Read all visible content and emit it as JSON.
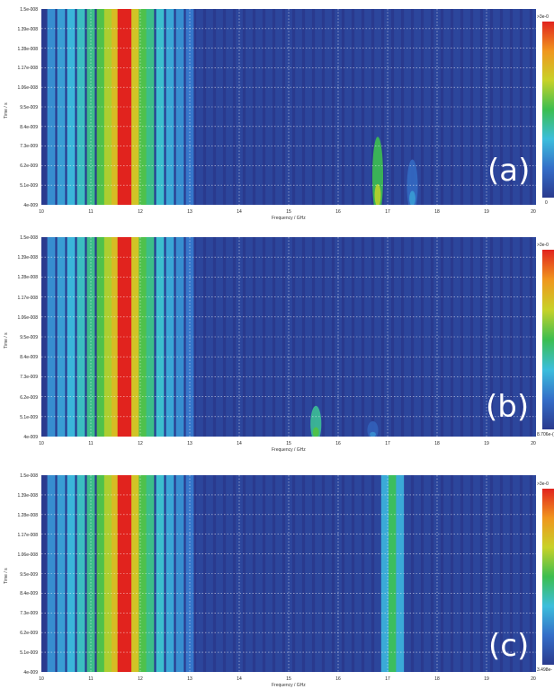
{
  "chart_data": [
    {
      "type": "heatmap",
      "panel_label": "(a)",
      "xlabel": "Frequency / GHz",
      "ylabel": "Time / s",
      "xlim": [
        10,
        20
      ],
      "ylim": [
        4e-09,
        1.5e-08
      ],
      "x_ticks": [
        "10",
        "11",
        "12",
        "13",
        "14",
        "15",
        "16",
        "17",
        "18",
        "19",
        "20"
      ],
      "y_ticks": [
        "4e-009",
        "5.1e-009",
        "6.2e-009",
        "7.3e-009",
        "8.4e-009",
        "9.5e-009",
        "1.06e-008",
        "1.17e-008",
        "1.28e-008",
        "1.39e-008",
        "1.5e-008"
      ],
      "colorbar_max": ">3e-0",
      "colorbar_min": "0",
      "bands": [
        {
          "f": 10.2,
          "level": 0.28
        },
        {
          "f": 10.4,
          "level": 0.32
        },
        {
          "f": 10.6,
          "level": 0.38
        },
        {
          "f": 10.8,
          "level": 0.44
        },
        {
          "f": 11.0,
          "level": 0.52
        },
        {
          "f": 11.2,
          "level": 0.62
        },
        {
          "f": 11.35,
          "level": 0.72
        },
        {
          "f": 11.5,
          "level": 0.8
        },
        {
          "f": 11.7,
          "level": 1.0
        },
        {
          "f": 11.9,
          "level": 0.78
        },
        {
          "f": 12.05,
          "level": 0.62
        },
        {
          "f": 12.2,
          "level": 0.52
        },
        {
          "f": 12.4,
          "level": 0.42
        },
        {
          "f": 12.6,
          "level": 0.34
        },
        {
          "f": 12.8,
          "level": 0.28
        },
        {
          "f": 13.0,
          "level": 0.22
        }
      ],
      "features": [
        {
          "f": 16.8,
          "t_low": 4e-09,
          "t_high": 8.5e-09,
          "level": 0.6
        },
        {
          "f": 17.5,
          "t_low": 4e-09,
          "t_high": 7e-09,
          "level": 0.18
        }
      ]
    },
    {
      "type": "heatmap",
      "panel_label": "(b)",
      "xlabel": "Frequency / GHz",
      "ylabel": "Time / s",
      "xlim": [
        10,
        20
      ],
      "ylim": [
        4e-09,
        1.5e-08
      ],
      "x_ticks": [
        "10",
        "11",
        "12",
        "13",
        "14",
        "15",
        "16",
        "17",
        "18",
        "19",
        "20"
      ],
      "y_ticks": [
        "4e-009",
        "5.1e-009",
        "6.2e-009",
        "7.3e-009",
        "8.4e-009",
        "9.5e-009",
        "1.06e-008",
        "1.17e-008",
        "1.28e-008",
        "1.39e-008",
        "1.5e-008"
      ],
      "colorbar_max": ">3e-0",
      "colorbar_min": "8.706e-(",
      "bands": [
        {
          "f": 10.2,
          "level": 0.28
        },
        {
          "f": 10.4,
          "level": 0.32
        },
        {
          "f": 10.6,
          "level": 0.38
        },
        {
          "f": 10.8,
          "level": 0.44
        },
        {
          "f": 11.0,
          "level": 0.52
        },
        {
          "f": 11.2,
          "level": 0.62
        },
        {
          "f": 11.35,
          "level": 0.72
        },
        {
          "f": 11.5,
          "level": 0.8
        },
        {
          "f": 11.7,
          "level": 1.0
        },
        {
          "f": 11.9,
          "level": 0.78
        },
        {
          "f": 12.05,
          "level": 0.62
        },
        {
          "f": 12.2,
          "level": 0.52
        },
        {
          "f": 12.4,
          "level": 0.42
        },
        {
          "f": 12.6,
          "level": 0.34
        },
        {
          "f": 12.8,
          "level": 0.28
        },
        {
          "f": 13.0,
          "level": 0.22
        }
      ],
      "features": [
        {
          "f": 15.55,
          "t_low": 4e-09,
          "t_high": 6e-09,
          "level": 0.5
        },
        {
          "f": 16.7,
          "t_low": 4e-09,
          "t_high": 5e-09,
          "level": 0.15
        }
      ]
    },
    {
      "type": "heatmap",
      "panel_label": "(c)",
      "xlabel": "Frequency / GHz",
      "ylabel": "Time / s",
      "xlim": [
        10,
        20
      ],
      "ylim": [
        4e-09,
        1.5e-08
      ],
      "x_ticks": [
        "10",
        "11",
        "12",
        "13",
        "14",
        "15",
        "16",
        "17",
        "18",
        "19",
        "20"
      ],
      "y_ticks": [
        "4e-009",
        "5.1e-009",
        "6.2e-009",
        "7.3e-009",
        "8.4e-009",
        "9.5e-009",
        "1.06e-008",
        "1.17e-008",
        "1.28e-008",
        "1.39e-008",
        "1.5e-008"
      ],
      "colorbar_max": ">3e-0",
      "colorbar_min": "3.498e-",
      "bands": [
        {
          "f": 10.2,
          "level": 0.28
        },
        {
          "f": 10.4,
          "level": 0.32
        },
        {
          "f": 10.6,
          "level": 0.38
        },
        {
          "f": 10.8,
          "level": 0.44
        },
        {
          "f": 11.0,
          "level": 0.52
        },
        {
          "f": 11.2,
          "level": 0.62
        },
        {
          "f": 11.35,
          "level": 0.72
        },
        {
          "f": 11.5,
          "level": 0.8
        },
        {
          "f": 11.7,
          "level": 1.0
        },
        {
          "f": 11.9,
          "level": 0.78
        },
        {
          "f": 12.05,
          "level": 0.62
        },
        {
          "f": 12.2,
          "level": 0.52
        },
        {
          "f": 12.4,
          "level": 0.42
        },
        {
          "f": 12.6,
          "level": 0.34
        },
        {
          "f": 12.8,
          "level": 0.28
        },
        {
          "f": 13.0,
          "level": 0.22
        },
        {
          "f": 16.95,
          "level": 0.35
        },
        {
          "f": 17.1,
          "level": 0.58
        },
        {
          "f": 17.25,
          "level": 0.35
        }
      ],
      "features": []
    }
  ]
}
